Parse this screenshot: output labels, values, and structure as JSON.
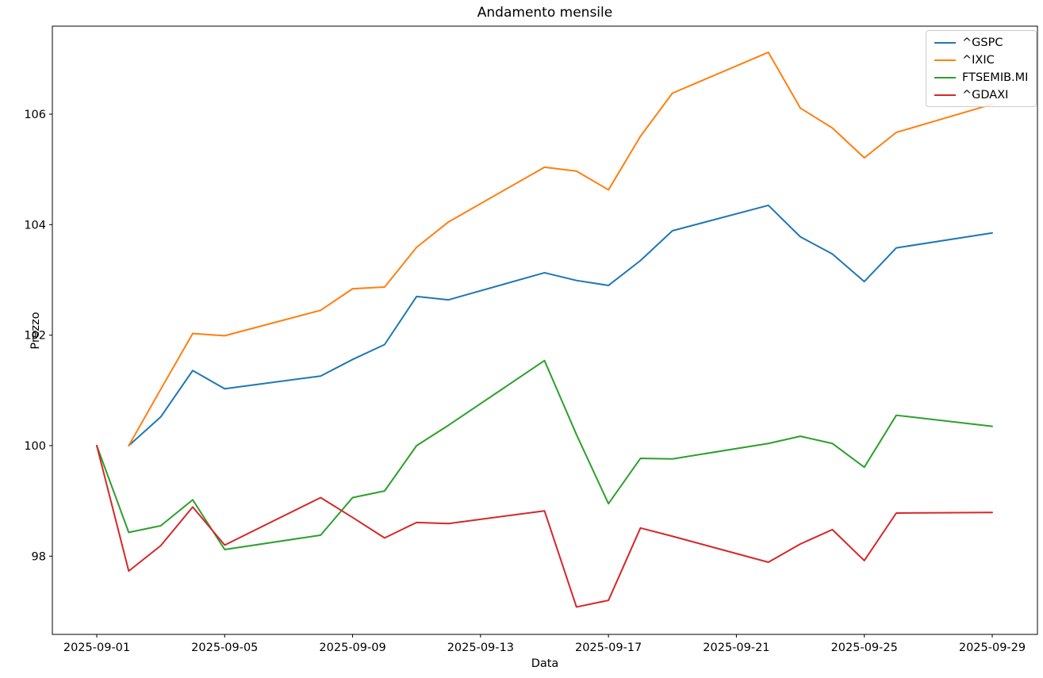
{
  "chart_data": {
    "type": "line",
    "title": "Andamento mensile",
    "xlabel": "Data",
    "ylabel": "Prezzo",
    "x": [
      "2025-09-01",
      "2025-09-02",
      "2025-09-03",
      "2025-09-04",
      "2025-09-05",
      "2025-09-08",
      "2025-09-09",
      "2025-09-10",
      "2025-09-11",
      "2025-09-12",
      "2025-09-15",
      "2025-09-16",
      "2025-09-17",
      "2025-09-18",
      "2025-09-19",
      "2025-09-22",
      "2025-09-23",
      "2025-09-24",
      "2025-09-25",
      "2025-09-26",
      "2025-09-29"
    ],
    "series": [
      {
        "name": "^GSPC",
        "color": "#1f77b4",
        "values": [
          null,
          100.0,
          100.52,
          101.36,
          101.03,
          101.26,
          101.56,
          101.83,
          102.7,
          102.64,
          103.13,
          102.99,
          102.9,
          103.35,
          103.89,
          104.35,
          103.78,
          103.47,
          102.97,
          103.58,
          103.85
        ]
      },
      {
        "name": "^IXIC",
        "color": "#ff7f0e",
        "values": [
          null,
          100.0,
          101.02,
          102.03,
          101.99,
          102.45,
          102.84,
          102.87,
          103.59,
          104.05,
          105.04,
          104.97,
          104.63,
          105.6,
          106.38,
          107.12,
          106.11,
          105.75,
          105.21,
          105.67,
          106.18
        ]
      },
      {
        "name": "FTSEMIB.MI",
        "color": "#2ca02c",
        "values": [
          100.0,
          98.43,
          98.55,
          99.02,
          98.12,
          98.38,
          99.06,
          99.18,
          100.0,
          100.37,
          101.54,
          100.2,
          98.95,
          99.77,
          99.76,
          100.04,
          100.17,
          100.04,
          99.61,
          100.55,
          100.35
        ]
      },
      {
        "name": "^GDAXI",
        "color": "#d62728",
        "values": [
          100.0,
          97.73,
          98.19,
          98.89,
          98.2,
          99.06,
          98.7,
          98.33,
          98.61,
          98.59,
          98.82,
          97.08,
          97.2,
          98.51,
          98.36,
          97.89,
          98.22,
          98.48,
          97.92,
          98.78,
          98.79
        ]
      }
    ],
    "x_ticks": [
      "2025-09-01",
      "2025-09-05",
      "2025-09-09",
      "2025-09-13",
      "2025-09-17",
      "2025-09-21",
      "2025-09-25",
      "2025-09-29"
    ],
    "y_ticks": [
      "98",
      "100",
      "102",
      "104",
      "106"
    ],
    "ylim": [
      96.6,
      107.6
    ],
    "grid": false,
    "legend_position": "upper right",
    "axis_color": "#000000",
    "background_color": "#ffffff"
  }
}
